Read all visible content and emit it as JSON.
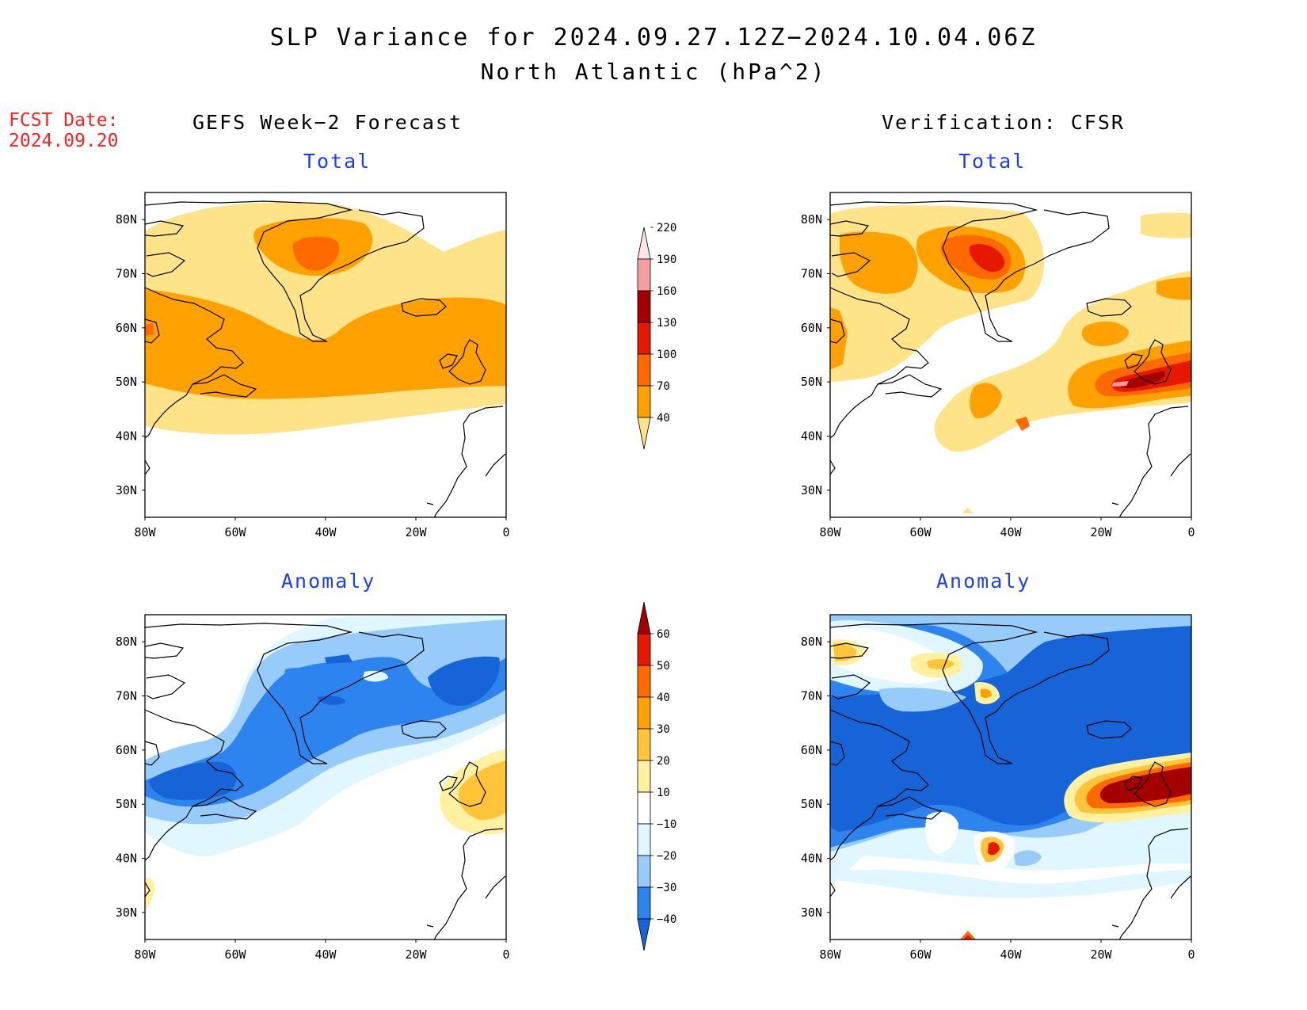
{
  "title": "SLP Variance for 2024.09.27.12Z−2024.10.04.06Z",
  "subtitle": "North Atlantic (hPa^2)",
  "fcst_label": "FCST Date:",
  "fcst_date": "2024.09.20",
  "columns": {
    "left": "GEFS Week−2 Forecast",
    "right": "Verification: CFSR"
  },
  "row_labels": {
    "top": "Total",
    "bottom": "Anomaly"
  },
  "axes": {
    "lon_ticks": [
      "80W",
      "60W",
      "40W",
      "20W",
      "0"
    ],
    "lat_ticks": [
      "80N",
      "70N",
      "60N",
      "50N",
      "40N",
      "30N"
    ],
    "lon_range": [
      -80,
      0
    ],
    "lat_range": [
      25,
      85
    ]
  },
  "colorbars": {
    "total": {
      "levels": [
        "40",
        "70",
        "100",
        "130",
        "160",
        "190",
        "220"
      ],
      "colors": [
        "#fee388",
        "#ffa100",
        "#ff6a00",
        "#e61900",
        "#a50000",
        "#f4a0a0",
        "#ffe6e6"
      ]
    },
    "anomaly": {
      "levels": [
        "−40",
        "−30",
        "−20",
        "−10",
        "10",
        "20",
        "30",
        "40",
        "50",
        "60"
      ],
      "colors": [
        "#1764d8",
        "#2e84ee",
        "#96cbfa",
        "#e0f7ff",
        "#ffffff",
        "#fff1a0",
        "#ffc43a",
        "#ffa100",
        "#ff6a00",
        "#e61900",
        "#a50000"
      ]
    }
  },
  "colors": {
    "title_blue": "#1c3cff",
    "fcst_red": "#ff2020"
  }
}
